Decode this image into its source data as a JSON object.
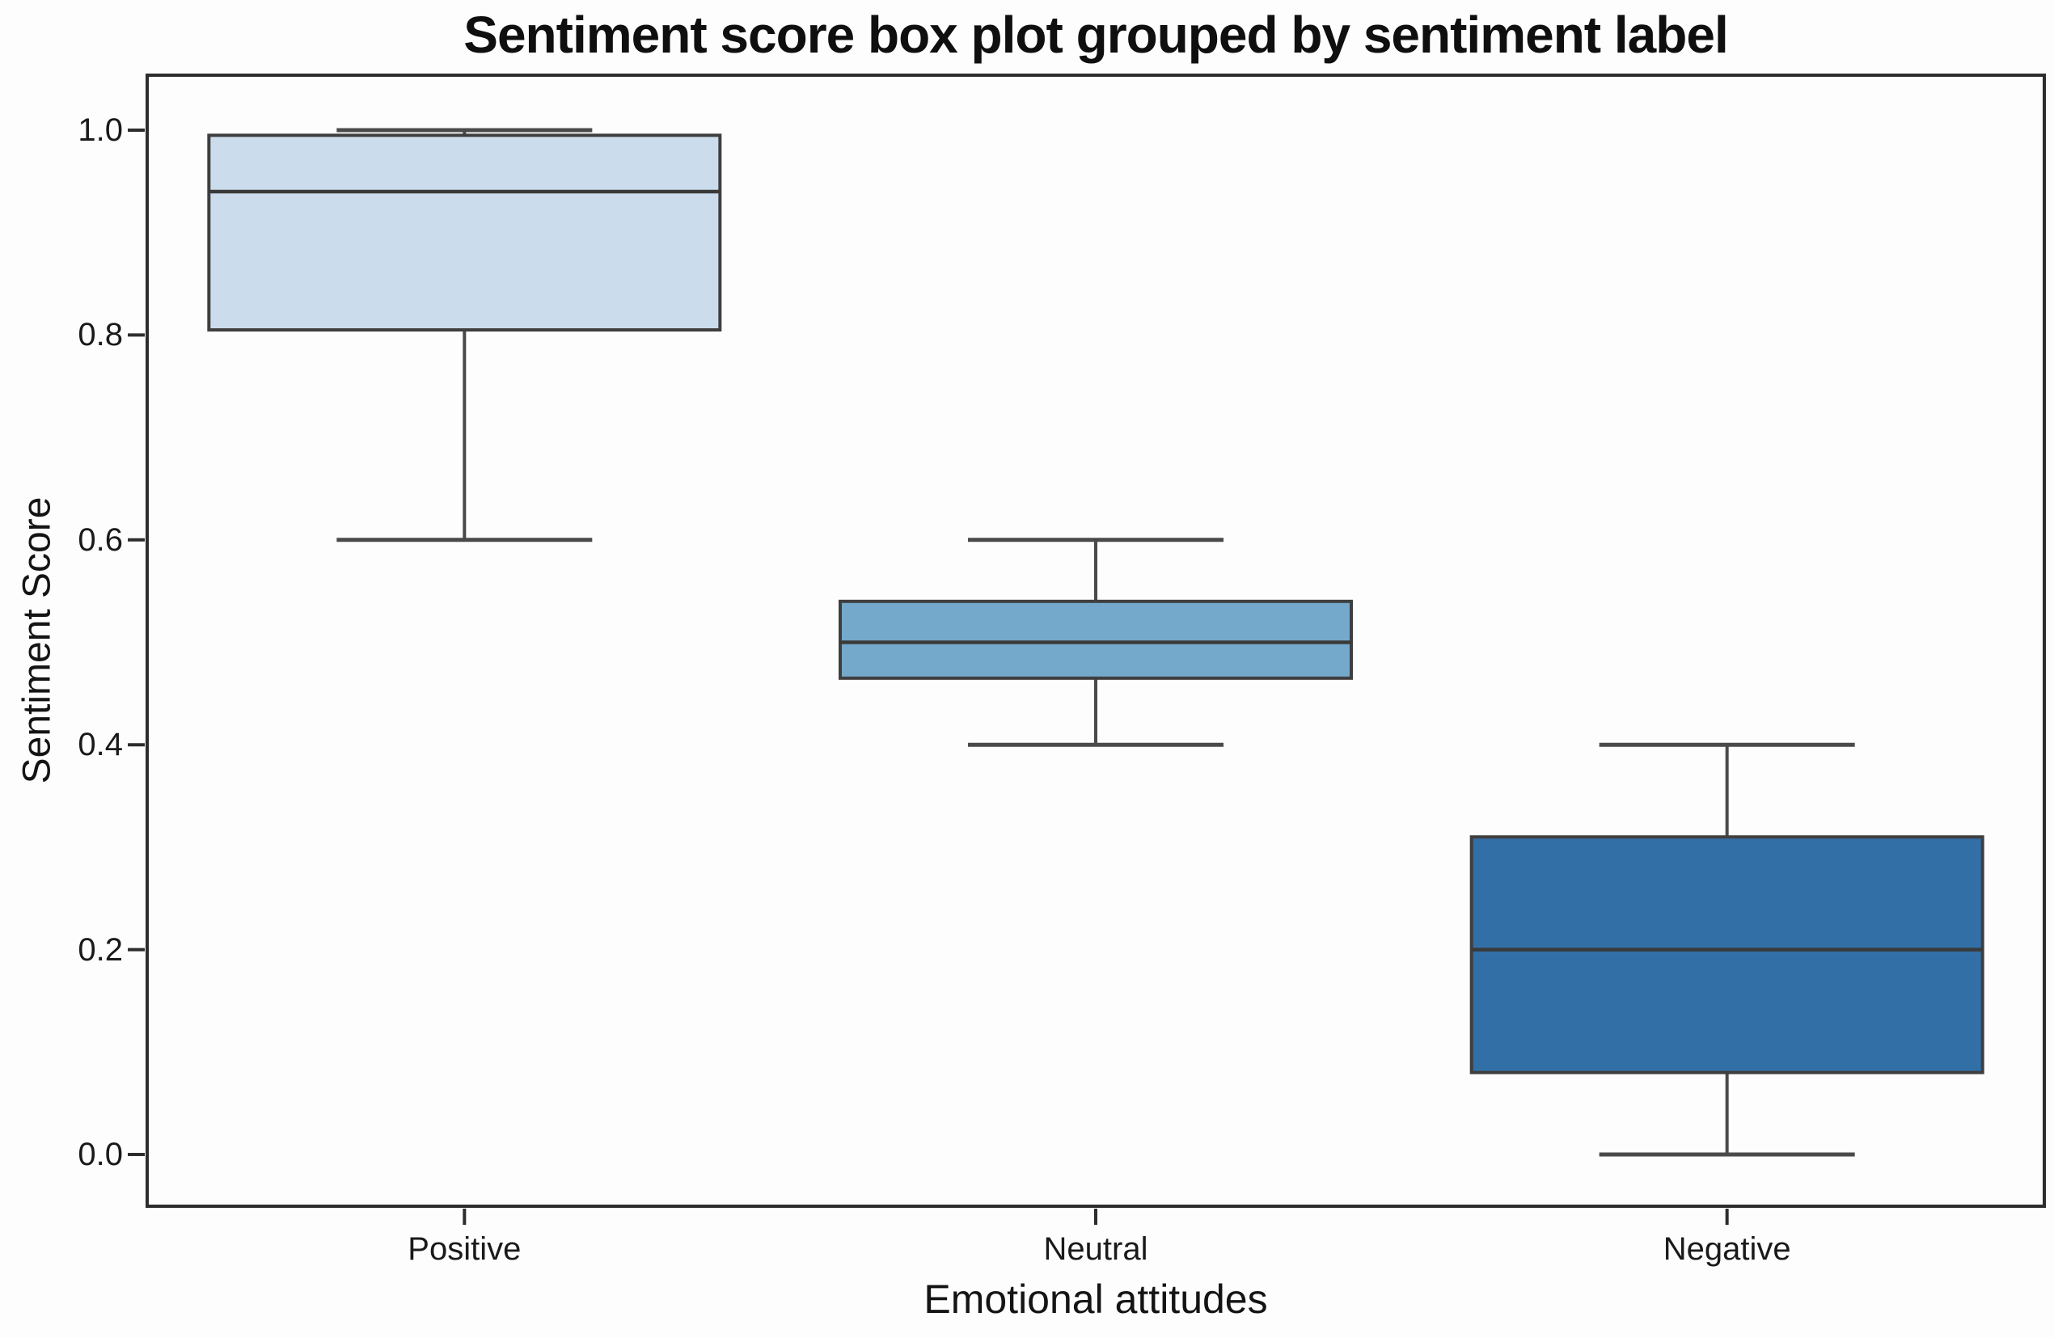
{
  "chart_data": {
    "type": "boxplot",
    "title": "Sentiment score box plot grouped by sentiment label",
    "xlabel": "Emotional attitudes",
    "ylabel": "Sentiment Score",
    "ylim": [
      -0.05,
      1.05
    ],
    "grid": false,
    "legend": "none",
    "categories": [
      "Positive",
      "Neutral",
      "Negative"
    ],
    "y_ticks": [
      {
        "label": "1.0",
        "value": 1.0
      },
      {
        "label": "0.8",
        "value": 0.8
      },
      {
        "label": "0.6",
        "value": 0.6
      },
      {
        "label": "0.4",
        "value": 0.4
      },
      {
        "label": "0.2",
        "value": 0.2
      },
      {
        "label": "0.0",
        "value": 0.0
      }
    ],
    "boxes": [
      {
        "category": "Positive",
        "whisker_low": 0.6,
        "q1": 0.805,
        "median": 0.94,
        "q3": 0.995,
        "whisker_high": 1.0,
        "fill_color": "#cbdcec"
      },
      {
        "category": "Neutral",
        "whisker_low": 0.4,
        "q1": 0.465,
        "median": 0.5,
        "q3": 0.54,
        "whisker_high": 0.6,
        "fill_color": "#74a9cc"
      },
      {
        "category": "Negative",
        "whisker_low": 0.0,
        "q1": 0.08,
        "median": 0.2,
        "q3": 0.31,
        "whisker_high": 0.4,
        "fill_color": "#326fa6"
      }
    ],
    "colors": {
      "box_edge": "#3f3f3f",
      "median_line": "#3a3a3a",
      "whisker": "#4a4a4a",
      "axis": "#2d2d2d",
      "text": "#1a1a1a",
      "background": "#fdfdfd"
    }
  }
}
